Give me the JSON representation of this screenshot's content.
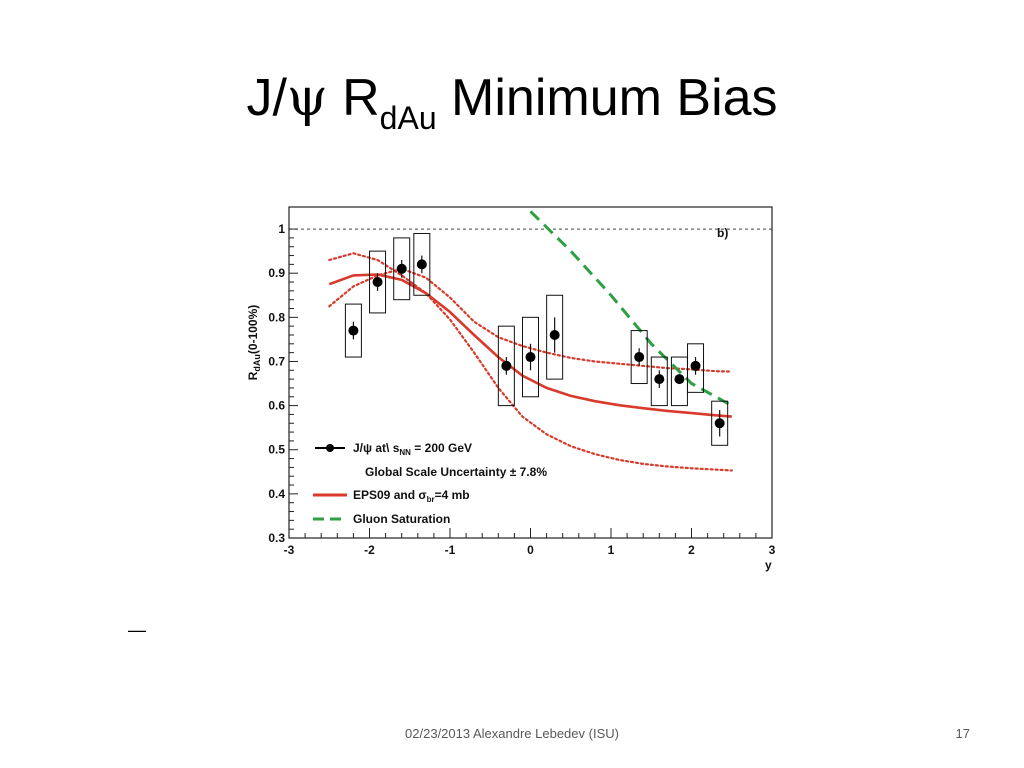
{
  "slide": {
    "title": {
      "prefix": "J/",
      "psi": "ψ",
      "r": " R",
      "subscript": "dAu",
      "rest": " Minimum Bias"
    },
    "dash": "—",
    "footer": "02/23/2013  Alexandre Lebedev (ISU)",
    "page_number": "17"
  },
  "chart_data": {
    "type": "scatter",
    "panel_label": "b)",
    "xlabel": "y",
    "ylabel": "R",
    "ylabel_sub": "dAu",
    "ylabel_suffix": "(0-100%)",
    "xlim": [
      -3,
      3
    ],
    "ylim": [
      0.3,
      1.05
    ],
    "x_ticks": [
      "-3",
      "-2",
      "-1",
      "0",
      "1",
      "2",
      "3"
    ],
    "y_ticks": [
      "0.3",
      "0.4",
      "0.5",
      "0.6",
      "0.7",
      "0.8",
      "0.9",
      "1"
    ],
    "reference_line": 1.0,
    "series": [
      {
        "name": "J/ψ at √s_NN = 200 GeV",
        "legend_label": "J/ψ at\\ s",
        "legend_sub": "NN",
        "legend_suffix": " = 200 GeV",
        "legend_note": "Global Scale Uncertainty ± 7.8%",
        "color": "#000000",
        "points": [
          {
            "x": -2.2,
            "y": 0.77,
            "err": 0.02,
            "sys_lo": 0.71,
            "sys_hi": 0.83
          },
          {
            "x": -1.9,
            "y": 0.88,
            "err": 0.02,
            "sys_lo": 0.81,
            "sys_hi": 0.95
          },
          {
            "x": -1.6,
            "y": 0.91,
            "err": 0.02,
            "sys_lo": 0.84,
            "sys_hi": 0.98
          },
          {
            "x": -1.35,
            "y": 0.92,
            "err": 0.02,
            "sys_lo": 0.85,
            "sys_hi": 0.99
          },
          {
            "x": -0.3,
            "y": 0.69,
            "err": 0.02,
            "sys_lo": 0.6,
            "sys_hi": 0.78
          },
          {
            "x": 0.0,
            "y": 0.71,
            "err": 0.03,
            "sys_lo": 0.62,
            "sys_hi": 0.8
          },
          {
            "x": 0.3,
            "y": 0.76,
            "err": 0.04,
            "sys_lo": 0.66,
            "sys_hi": 0.85
          },
          {
            "x": 1.35,
            "y": 0.71,
            "err": 0.02,
            "sys_lo": 0.65,
            "sys_hi": 0.77
          },
          {
            "x": 1.6,
            "y": 0.66,
            "err": 0.02,
            "sys_lo": 0.6,
            "sys_hi": 0.71
          },
          {
            "x": 1.85,
            "y": 0.66,
            "err": 0.01,
            "sys_lo": 0.6,
            "sys_hi": 0.71
          },
          {
            "x": 2.05,
            "y": 0.69,
            "err": 0.02,
            "sys_lo": 0.63,
            "sys_hi": 0.74
          },
          {
            "x": 2.35,
            "y": 0.56,
            "err": 0.03,
            "sys_lo": 0.51,
            "sys_hi": 0.61
          }
        ]
      },
      {
        "name": "EPS09 and σ_br=4 mb",
        "legend_label": "EPS09 and σ",
        "legend_sub": "br",
        "legend_suffix": "=4 mb",
        "color": "#d93a2b",
        "x": [
          -2.5,
          -2.2,
          -1.9,
          -1.6,
          -1.3,
          -1.0,
          -0.7,
          -0.4,
          -0.1,
          0.2,
          0.5,
          0.8,
          1.1,
          1.4,
          1.7,
          2.0,
          2.3,
          2.5
        ],
        "y": [
          0.875,
          0.895,
          0.897,
          0.885,
          0.855,
          0.812,
          0.76,
          0.71,
          0.668,
          0.64,
          0.622,
          0.61,
          0.601,
          0.594,
          0.588,
          0.583,
          0.578,
          0.575
        ],
        "band_upper": [
          0.825,
          0.87,
          0.895,
          0.91,
          0.89,
          0.845,
          0.79,
          0.755,
          0.735,
          0.72,
          0.708,
          0.7,
          0.695,
          0.69,
          0.685,
          0.682,
          0.678,
          0.677
        ],
        "band_lower": [
          0.93,
          0.945,
          0.93,
          0.895,
          0.855,
          0.795,
          0.72,
          0.64,
          0.575,
          0.535,
          0.508,
          0.49,
          0.477,
          0.468,
          0.462,
          0.458,
          0.455,
          0.453
        ]
      },
      {
        "name": "Gluon Saturation",
        "legend_label": "Gluon Saturation",
        "color": "#2ea043",
        "x": [
          0.0,
          0.5,
          1.0,
          1.5,
          2.0,
          2.5
        ],
        "y": [
          1.04,
          0.95,
          0.85,
          0.74,
          0.65,
          0.6
        ]
      }
    ]
  }
}
